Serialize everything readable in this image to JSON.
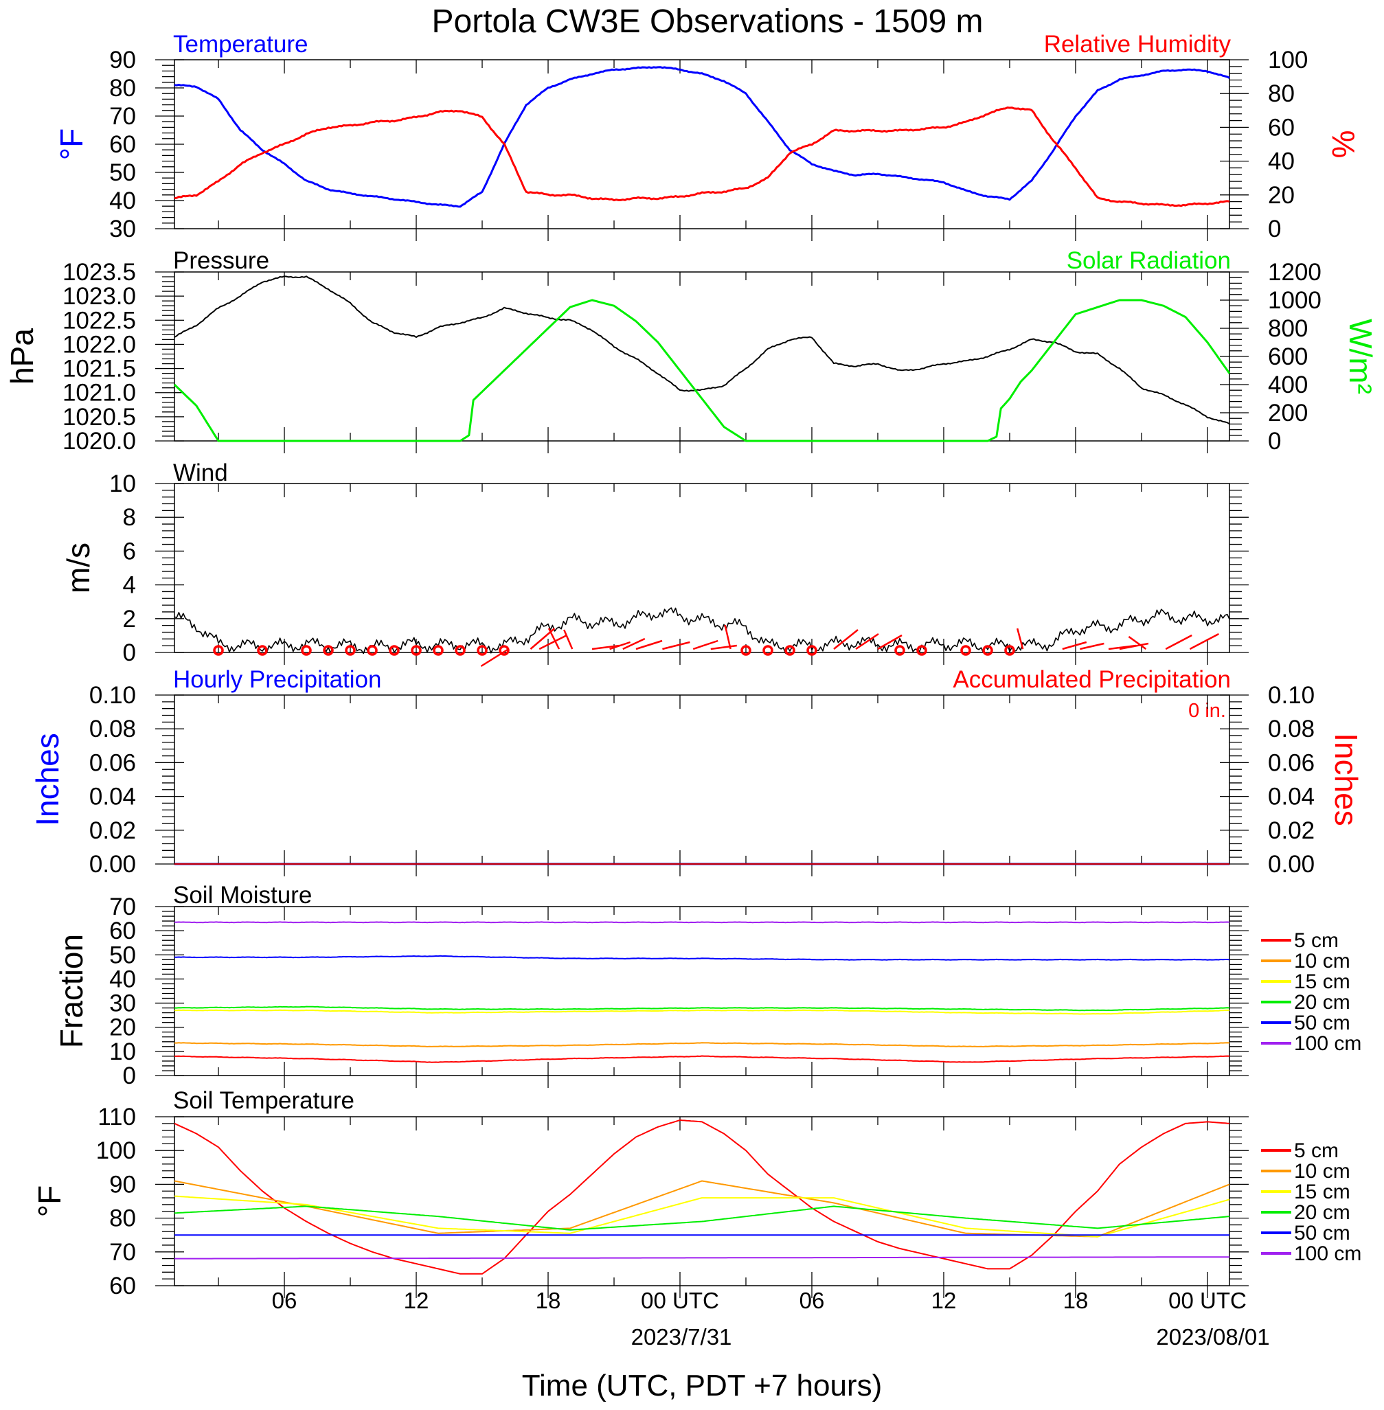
{
  "title": "Portola CW3E Observations - 1509 m",
  "xaxis": {
    "label": "Time (UTC, PDT +7 hours)",
    "tick_labels": [
      "06",
      "12",
      "18",
      "00 UTC",
      "06",
      "12",
      "18",
      "00 UTC"
    ],
    "tick_hours": [
      6,
      12,
      18,
      24,
      30,
      36,
      42,
      48
    ],
    "date_labels": [
      "2023/7/31",
      "2023/08/01"
    ],
    "range_hours": [
      1,
      49
    ]
  },
  "panels": {
    "temp": {
      "left_title": "Temperature",
      "right_title": "Relative Humidity",
      "left_unit": "°F",
      "right_unit": "%",
      "left_ticks": [
        "30",
        "40",
        "50",
        "60",
        "70",
        "80",
        "90"
      ],
      "right_ticks": [
        "0",
        "20",
        "40",
        "60",
        "80",
        "100"
      ]
    },
    "pressure": {
      "left_title": "Pressure",
      "right_title": "Solar Radiation",
      "left_unit": "hPa",
      "right_unit": "W/m²",
      "left_ticks": [
        "1020.0",
        "1020.5",
        "1021.0",
        "1021.5",
        "1022.0",
        "1022.5",
        "1023.0",
        "1023.5"
      ],
      "right_ticks": [
        "0",
        "200",
        "400",
        "600",
        "800",
        "1000",
        "1200"
      ]
    },
    "wind": {
      "left_title": "Wind",
      "left_unit": "m/s",
      "left_ticks": [
        "0",
        "2",
        "4",
        "6",
        "8",
        "10"
      ]
    },
    "precip": {
      "left_title": "Hourly Precipitation",
      "right_title": "Accumulated Precipitation",
      "total": "0 in.",
      "left_unit": "Inches",
      "right_unit": "Inches",
      "left_ticks": [
        "0.00",
        "0.02",
        "0.04",
        "0.06",
        "0.08",
        "0.10"
      ],
      "right_ticks": [
        "0.00",
        "0.02",
        "0.04",
        "0.06",
        "0.08",
        "0.10"
      ]
    },
    "soilm": {
      "left_title": "Soil Moisture",
      "left_unit": "Fraction",
      "left_ticks": [
        "0",
        "10",
        "20",
        "30",
        "40",
        "50",
        "60",
        "70"
      ]
    },
    "soilt": {
      "left_title": "Soil Temperature",
      "left_unit": "°F",
      "left_ticks": [
        "60",
        "70",
        "80",
        "90",
        "100",
        "110"
      ]
    }
  },
  "legend_depths": [
    "5 cm",
    "10 cm",
    "15 cm",
    "20 cm",
    "50 cm",
    "100 cm"
  ],
  "colors": {
    "temperature": "#0000ff",
    "humidity": "#ff0000",
    "pressure": "#000000",
    "solar": "#00ee00",
    "wind": "#000000",
    "barb": "#ff0000",
    "depth_5": "#ff0000",
    "depth_10": "#ff9900",
    "depth_15": "#ffff00",
    "depth_20": "#00ee00",
    "depth_50": "#0000ff",
    "depth_100": "#a020f0"
  },
  "chart_data": [
    {
      "type": "line",
      "title": "Temperature / Relative Humidity",
      "x_unit": "hours UTC from 2023/7/30 00 UTC",
      "ylim": [
        30,
        90
      ],
      "y2lim": [
        0,
        100
      ],
      "series": [
        {
          "name": "Temperature",
          "axis": "left",
          "unit": "°F",
          "x": [
            1,
            2,
            3,
            4,
            5,
            6,
            7,
            8,
            9,
            10,
            11,
            12,
            13,
            14,
            15,
            16,
            17,
            18,
            19,
            20,
            21,
            22,
            23,
            24,
            25,
            26,
            27,
            28,
            29,
            30,
            31,
            32,
            33,
            34,
            35,
            36,
            37,
            38,
            39,
            40,
            41,
            42,
            43,
            44,
            45,
            46,
            47,
            48,
            49
          ],
          "y": [
            81,
            80.5,
            76,
            65,
            58,
            53,
            47,
            44,
            42.5,
            41.5,
            40.5,
            39.5,
            38.5,
            38,
            43,
            60,
            74,
            80,
            83,
            85,
            86.5,
            87,
            87.5,
            86.5,
            85,
            82.5,
            78,
            68,
            58,
            53,
            50.5,
            49,
            49.5,
            48.5,
            47.5,
            46.5,
            43.5,
            41.5,
            40.5,
            47,
            58,
            70,
            79,
            83,
            84.5,
            86,
            86.5,
            86,
            83.5
          ]
        },
        {
          "name": "Relative Humidity",
          "axis": "right",
          "unit": "%",
          "x": [
            1,
            2,
            3,
            4,
            5,
            6,
            7,
            8,
            9,
            10,
            11,
            12,
            13,
            14,
            15,
            16,
            17,
            18,
            19,
            20,
            21,
            22,
            23,
            24,
            25,
            26,
            27,
            28,
            29,
            30,
            31,
            32,
            33,
            34,
            35,
            36,
            37,
            38,
            39,
            40,
            41,
            42,
            43,
            44,
            45,
            46,
            47,
            48,
            49
          ],
          "y": [
            18,
            20,
            28,
            38,
            45,
            50,
            56,
            60,
            61,
            63,
            64,
            66,
            69,
            70,
            66,
            50,
            22,
            20,
            20,
            18,
            17,
            18,
            18,
            19,
            21,
            22,
            24,
            30,
            45,
            50,
            58,
            58,
            58,
            58,
            59,
            60,
            63,
            68,
            72,
            70,
            52,
            36,
            18,
            16,
            15,
            14,
            14,
            15,
            16
          ]
        }
      ]
    },
    {
      "type": "line",
      "title": "Pressure / Solar Radiation",
      "x_unit": "hours UTC from 2023/7/30 00 UTC",
      "ylim": [
        1020.0,
        1023.5
      ],
      "y2lim": [
        0,
        1200
      ],
      "series": [
        {
          "name": "Pressure",
          "axis": "left",
          "unit": "hPa",
          "x": [
            1,
            2,
            3,
            4,
            5,
            6,
            7,
            8,
            9,
            10,
            11,
            12,
            13,
            14,
            15,
            16,
            17,
            18,
            19,
            20,
            21,
            22,
            23,
            24,
            25,
            26,
            27,
            28,
            29,
            30,
            31,
            32,
            33,
            34,
            35,
            36,
            37,
            38,
            39,
            40,
            41,
            42,
            43,
            44,
            45,
            46,
            47,
            48,
            49
          ],
          "y": [
            1022.15,
            1022.4,
            1022.75,
            1023.0,
            1023.3,
            1023.4,
            1023.4,
            1023.15,
            1022.85,
            1022.45,
            1022.25,
            1022.15,
            1022.35,
            1022.45,
            1022.55,
            1022.75,
            1022.65,
            1022.55,
            1022.5,
            1022.3,
            1021.95,
            1021.7,
            1021.4,
            1021.05,
            1021.05,
            1021.15,
            1021.5,
            1021.9,
            1022.1,
            1022.15,
            1021.6,
            1021.55,
            1021.6,
            1021.45,
            1021.5,
            1021.6,
            1021.65,
            1021.75,
            1021.9,
            1022.1,
            1022.05,
            1021.85,
            1021.8,
            1021.5,
            1021.1,
            1020.95,
            1020.75,
            1020.5,
            1020.35
          ]
        },
        {
          "name": "Solar Radiation",
          "axis": "right",
          "unit": "W/m²",
          "x": [
            1,
            2,
            3,
            4,
            5,
            6,
            7,
            8,
            9,
            10,
            11,
            12,
            13,
            14,
            14.4,
            14.6,
            15,
            16,
            17,
            18,
            19,
            20,
            21,
            22,
            23,
            24,
            25,
            26,
            27,
            28,
            29,
            30,
            31,
            32,
            33,
            34,
            35,
            36,
            37,
            38,
            38.4,
            38.6,
            39,
            39.5,
            40,
            40.5,
            41,
            41.5,
            42,
            43,
            44,
            45,
            46,
            47,
            48,
            49
          ],
          "y": [
            400,
            250,
            0,
            0,
            0,
            0,
            0,
            0,
            0,
            0,
            0,
            0,
            0,
            0,
            40,
            290,
            350,
            500,
            650,
            800,
            950,
            1000,
            960,
            850,
            700,
            500,
            300,
            100,
            0,
            0,
            0,
            0,
            0,
            0,
            0,
            0,
            0,
            0,
            0,
            0,
            30,
            230,
            300,
            420,
            500,
            600,
            700,
            800,
            900,
            950,
            1000,
            1000,
            960,
            880,
            700,
            480
          ]
        }
      ]
    },
    {
      "type": "line",
      "title": "Wind",
      "x_unit": "hours UTC from 2023/7/30 00 UTC",
      "ylim": [
        0,
        10
      ],
      "series": [
        {
          "name": "Wind",
          "unit": "m/s",
          "x": [
            1,
            2,
            3,
            4,
            5,
            6,
            7,
            8,
            9,
            10,
            11,
            12,
            13,
            14,
            15,
            16,
            17,
            18,
            19,
            20,
            21,
            22,
            23,
            24,
            25,
            26,
            27,
            28,
            29,
            30,
            31,
            32,
            33,
            34,
            35,
            36,
            37,
            38,
            39,
            40,
            41,
            42,
            43,
            44,
            45,
            46,
            47,
            48,
            49
          ],
          "y": [
            2.1,
            1.6,
            0.5,
            0.4,
            0.4,
            0.4,
            0.5,
            0.4,
            0.4,
            0.3,
            0.4,
            0.5,
            0.4,
            0.5,
            0.4,
            0.4,
            0.9,
            1.5,
            1.9,
            1.8,
            1.7,
            2.0,
            2.4,
            2.2,
            1.9,
            1.7,
            1.5,
            0.4,
            0.4,
            0.4,
            0.5,
            0.6,
            0.5,
            0.4,
            0.4,
            0.5,
            0.5,
            0.4,
            0.4,
            0.4,
            0.6,
            1.4,
            1.5,
            1.6,
            2.0,
            2.2,
            2.0,
            2.0,
            1.9
          ]
        }
      ]
    },
    {
      "type": "line",
      "title": "Hourly / Accumulated Precipitation",
      "x_unit": "hours UTC from 2023/7/30 00 UTC",
      "ylim": [
        0,
        0.1
      ],
      "series": [
        {
          "name": "Hourly Precipitation",
          "x": [
            1,
            49
          ],
          "y": [
            0,
            0
          ]
        },
        {
          "name": "Accumulated Precipitation",
          "x": [
            1,
            49
          ],
          "y": [
            0,
            0
          ]
        }
      ]
    },
    {
      "type": "line",
      "title": "Soil Moisture",
      "x_unit": "hours UTC from 2023/7/30 00 UTC",
      "ylim": [
        0,
        70
      ],
      "series": [
        {
          "name": "5 cm",
          "x": [
            1,
            7,
            13,
            19,
            25,
            31,
            37,
            43,
            49
          ],
          "y": [
            8,
            7,
            5.5,
            7,
            8,
            7,
            5.5,
            7,
            8
          ]
        },
        {
          "name": "10 cm",
          "x": [
            1,
            7,
            13,
            19,
            25,
            31,
            37,
            43,
            49
          ],
          "y": [
            13.5,
            13,
            12,
            12.5,
            13.5,
            13,
            12,
            12.5,
            13.5
          ]
        },
        {
          "name": "15 cm",
          "x": [
            1,
            7,
            13,
            19,
            25,
            31,
            37,
            43,
            49
          ],
          "y": [
            27,
            27,
            26,
            26.5,
            27,
            27,
            26,
            25.5,
            27
          ]
        },
        {
          "name": "20 cm",
          "x": [
            1,
            7,
            13,
            19,
            25,
            31,
            37,
            43,
            49
          ],
          "y": [
            28,
            28.5,
            27.5,
            27.5,
            28,
            28,
            27.5,
            27,
            28
          ]
        },
        {
          "name": "50 cm",
          "x": [
            1,
            7,
            13,
            19,
            25,
            31,
            37,
            43,
            49
          ],
          "y": [
            49,
            49,
            49.5,
            48.5,
            48.5,
            48,
            48,
            48,
            48
          ]
        },
        {
          "name": "100 cm",
          "x": [
            1,
            7,
            13,
            19,
            25,
            31,
            37,
            43,
            49
          ],
          "y": [
            63.5,
            63.5,
            63.5,
            63.5,
            63.5,
            63.5,
            63.5,
            63.5,
            63.5
          ]
        }
      ]
    },
    {
      "type": "line",
      "title": "Soil Temperature",
      "x_unit": "hours UTC from 2023/7/30 00 UTC",
      "ylim": [
        60,
        110
      ],
      "series": [
        {
          "name": "5 cm",
          "x": [
            1,
            2,
            3,
            4,
            5,
            6,
            7,
            8,
            9,
            10,
            11,
            12,
            13,
            14,
            15,
            16,
            17,
            18,
            19,
            20,
            21,
            22,
            23,
            24,
            25,
            26,
            27,
            28,
            29,
            30,
            31,
            32,
            33,
            34,
            35,
            36,
            37,
            38,
            39,
            40,
            41,
            42,
            43,
            44,
            45,
            46,
            47,
            48,
            49
          ],
          "y": [
            108,
            105,
            101,
            94,
            88,
            83,
            79,
            75.5,
            72.5,
            70,
            68,
            66.5,
            65,
            63.5,
            63.5,
            68,
            75,
            82,
            87,
            93,
            99,
            104,
            107,
            109,
            108.5,
            105,
            100,
            93,
            88,
            83,
            79,
            76,
            73,
            71,
            69.5,
            68,
            66.5,
            65,
            65,
            69,
            75,
            82,
            88,
            96,
            101,
            105,
            108,
            108.5,
            108
          ]
        },
        {
          "name": "10 cm",
          "x": [
            1,
            7,
            13,
            19,
            25,
            31,
            37,
            43,
            49
          ],
          "y": [
            91,
            83.5,
            75.5,
            77,
            91,
            84.5,
            75.5,
            74.5,
            90
          ]
        },
        {
          "name": "15 cm",
          "x": [
            1,
            7,
            13,
            19,
            25,
            31,
            37,
            43,
            49
          ],
          "y": [
            86.5,
            84,
            77,
            75.5,
            86,
            86,
            77,
            74.5,
            85.5
          ]
        },
        {
          "name": "20 cm",
          "x": [
            1,
            7,
            13,
            19,
            25,
            31,
            37,
            43,
            49
          ],
          "y": [
            81.5,
            83.5,
            80.5,
            76.5,
            79,
            83.5,
            80,
            77,
            80.5
          ]
        },
        {
          "name": "50 cm",
          "x": [
            1,
            49
          ],
          "y": [
            75,
            75
          ]
        },
        {
          "name": "100 cm",
          "x": [
            1,
            49
          ],
          "y": [
            68,
            68.5
          ]
        }
      ]
    }
  ]
}
